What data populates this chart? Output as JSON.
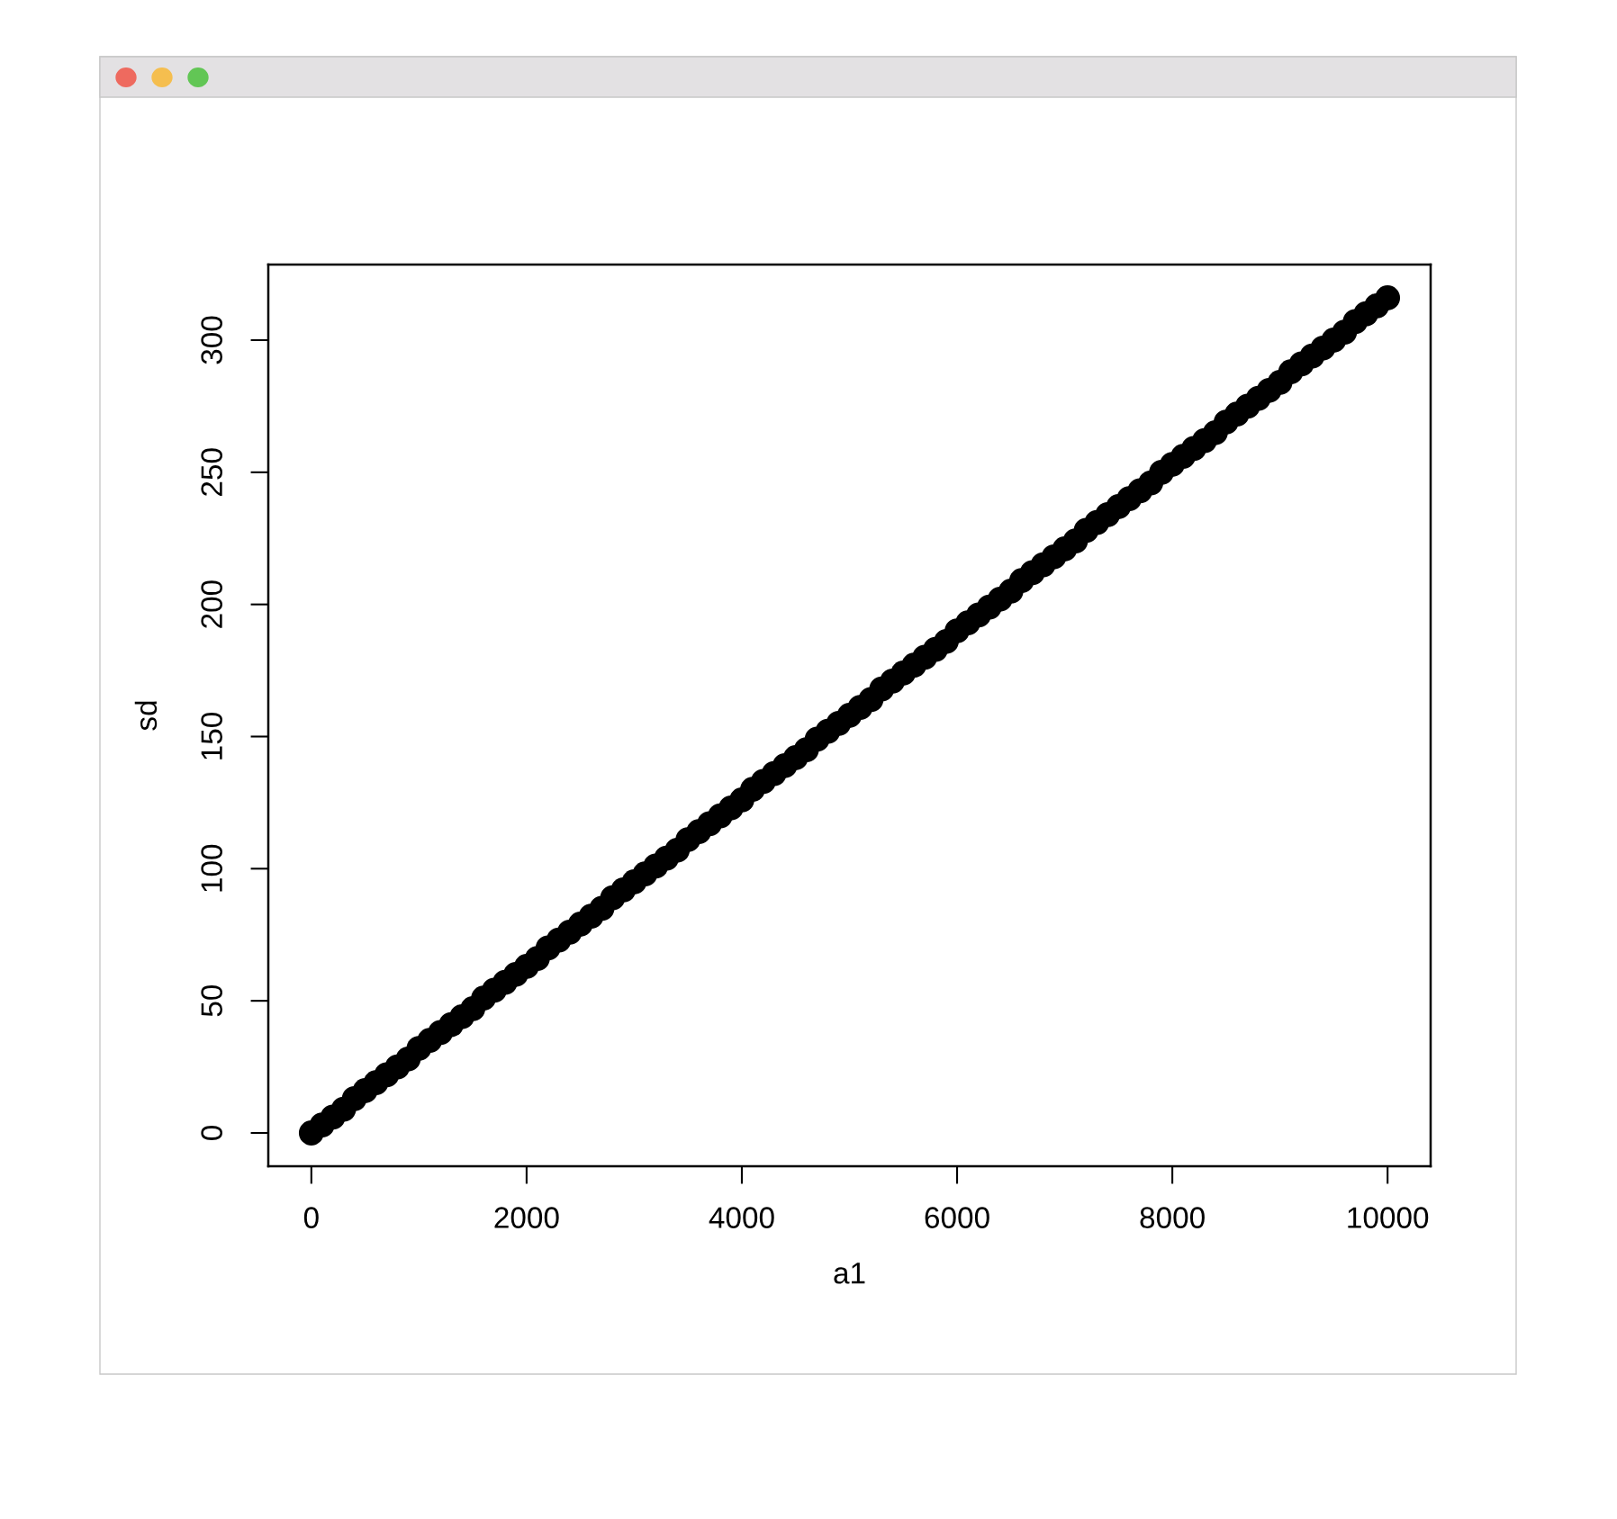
{
  "chart_data": {
    "type": "scatter",
    "xlabel": "a1",
    "ylabel": "sd",
    "x": [
      0,
      100,
      200,
      300,
      400,
      500,
      600,
      700,
      800,
      900,
      1000,
      1100,
      1200,
      1300,
      1400,
      1500,
      1600,
      1700,
      1800,
      1900,
      2000,
      2100,
      2200,
      2300,
      2400,
      2500,
      2600,
      2700,
      2800,
      2900,
      3000,
      3100,
      3200,
      3300,
      3400,
      3500,
      3600,
      3700,
      3800,
      3900,
      4000,
      4100,
      4200,
      4300,
      4400,
      4500,
      4600,
      4700,
      4800,
      4900,
      5000,
      5100,
      5200,
      5300,
      5400,
      5500,
      5600,
      5700,
      5800,
      5900,
      6000,
      6100,
      6200,
      6300,
      6400,
      6500,
      6600,
      6700,
      6800,
      6900,
      7000,
      7100,
      7200,
      7300,
      7400,
      7500,
      7600,
      7700,
      7800,
      7900,
      8000,
      8100,
      8200,
      8300,
      8400,
      8500,
      8600,
      8700,
      8800,
      8900,
      9000,
      9100,
      9200,
      9300,
      9400,
      9500,
      9600,
      9700,
      9800,
      9900,
      10000
    ],
    "values": [
      0,
      3,
      6,
      9,
      13,
      16,
      19,
      22,
      25,
      28,
      32,
      35,
      38,
      41,
      44,
      47,
      51,
      54,
      57,
      60,
      63,
      66,
      70,
      73,
      76,
      79,
      82,
      85,
      89,
      92,
      95,
      98,
      101,
      104,
      107,
      111,
      114,
      117,
      120,
      123,
      126,
      130,
      133,
      136,
      139,
      142,
      145,
      149,
      152,
      155,
      158,
      161,
      164,
      168,
      171,
      174,
      177,
      180,
      183,
      186,
      190,
      193,
      196,
      199,
      202,
      205,
      209,
      212,
      215,
      218,
      221,
      224,
      228,
      231,
      234,
      237,
      240,
      243,
      246,
      250,
      253,
      256,
      259,
      262,
      265,
      269,
      272,
      275,
      278,
      281,
      284,
      288,
      291,
      294,
      297,
      300,
      303,
      307,
      310,
      313,
      316
    ],
    "color": "#000000",
    "marker": "circle",
    "grid": false,
    "xlim": [
      -400,
      10400
    ],
    "ylim": [
      -12.6,
      328.6
    ],
    "xticks": [
      0,
      2000,
      4000,
      6000,
      8000,
      10000
    ],
    "yticks": [
      0,
      50,
      100,
      150,
      200,
      250,
      300
    ]
  }
}
